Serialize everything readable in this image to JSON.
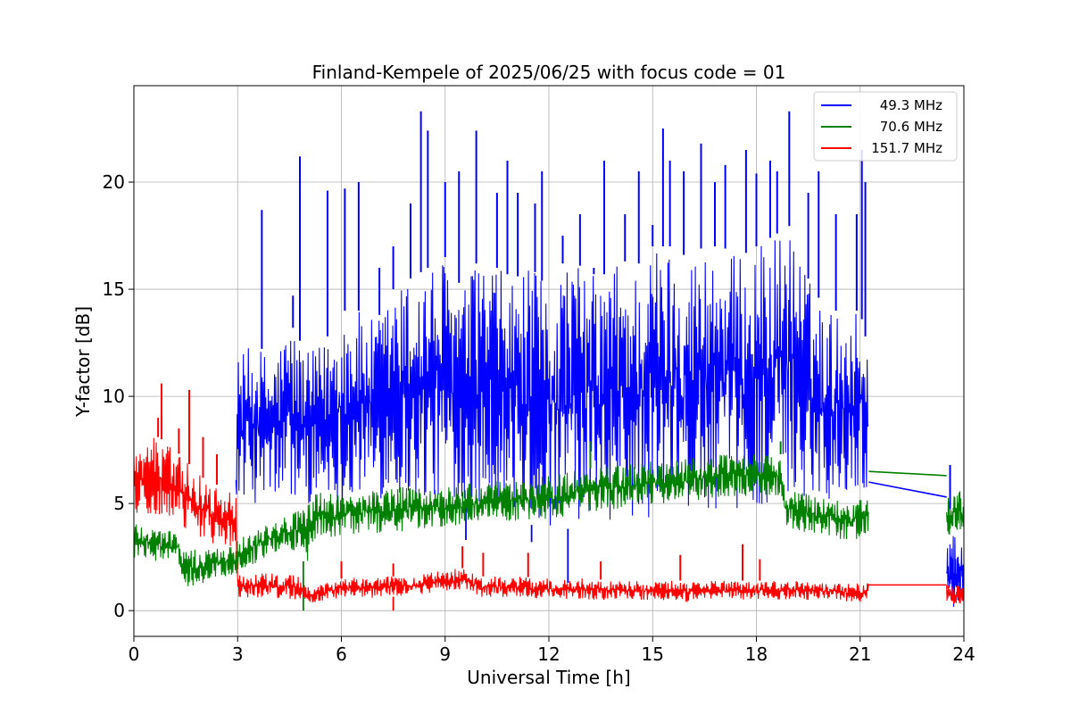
{
  "chart_data": {
    "type": "line",
    "title": "Finland-Kempele of 2025/06/25 with focus code = 01",
    "xlabel": "Universal Time [h]",
    "ylabel": "Y-factor [dB]",
    "xlim": [
      0,
      24
    ],
    "ylim": [
      -1.2,
      24.5
    ],
    "xticks": [
      0,
      3,
      6,
      9,
      12,
      15,
      18,
      21,
      24
    ],
    "xtick_labels": [
      "0",
      "3",
      "6",
      "9",
      "12",
      "15",
      "18",
      "21",
      "24"
    ],
    "yticks": [
      0,
      5,
      10,
      15,
      20
    ],
    "ytick_labels": [
      "0",
      "5",
      "10",
      "15",
      "20"
    ],
    "grid": true,
    "legend_position": "top-right",
    "series": [
      {
        "name": "49.3 MHz",
        "color": "#0000ff",
        "envelope": [
          {
            "x": 2.95,
            "low": 5.5,
            "high": 6.8
          },
          {
            "x": 3.0,
            "low": 5.2,
            "high": 11.9
          },
          {
            "x": 3.5,
            "low": 5.0,
            "high": 12.5
          },
          {
            "x": 4.0,
            "low": 5.0,
            "high": 11.8
          },
          {
            "x": 4.5,
            "low": 5.0,
            "high": 13.5
          },
          {
            "x": 5.0,
            "low": 5.0,
            "high": 12.0
          },
          {
            "x": 5.5,
            "low": 5.0,
            "high": 12.5
          },
          {
            "x": 6.0,
            "low": 5.1,
            "high": 14.0
          },
          {
            "x": 6.5,
            "low": 5.2,
            "high": 14.0
          },
          {
            "x": 7.0,
            "low": 5.2,
            "high": 13.5
          },
          {
            "x": 7.5,
            "low": 5.2,
            "high": 15.0
          },
          {
            "x": 8.0,
            "low": 5.0,
            "high": 15.5
          },
          {
            "x": 8.5,
            "low": 5.0,
            "high": 16.0
          },
          {
            "x": 9.0,
            "low": 5.2,
            "high": 16.5
          },
          {
            "x": 9.5,
            "low": 5.0,
            "high": 15.0
          },
          {
            "x": 10.0,
            "low": 5.0,
            "high": 16.5
          },
          {
            "x": 10.5,
            "low": 4.8,
            "high": 16.0
          },
          {
            "x": 11.0,
            "low": 4.5,
            "high": 15.5
          },
          {
            "x": 11.5,
            "low": 4.0,
            "high": 16.0
          },
          {
            "x": 12.0,
            "low": 3.8,
            "high": 15.0
          },
          {
            "x": 12.5,
            "low": 3.8,
            "high": 16.5
          },
          {
            "x": 13.0,
            "low": 4.0,
            "high": 16.0
          },
          {
            "x": 13.5,
            "low": 4.2,
            "high": 15.5
          },
          {
            "x": 14.0,
            "low": 4.0,
            "high": 16.5
          },
          {
            "x": 14.5,
            "low": 4.0,
            "high": 16.0
          },
          {
            "x": 15.0,
            "low": 4.3,
            "high": 17.0
          },
          {
            "x": 15.5,
            "low": 4.5,
            "high": 17.0
          },
          {
            "x": 16.0,
            "low": 4.5,
            "high": 16.5
          },
          {
            "x": 16.5,
            "low": 4.6,
            "high": 17.0
          },
          {
            "x": 17.0,
            "low": 4.8,
            "high": 17.0
          },
          {
            "x": 17.5,
            "low": 4.6,
            "high": 16.5
          },
          {
            "x": 18.0,
            "low": 4.8,
            "high": 17.0
          },
          {
            "x": 18.5,
            "low": 5.0,
            "high": 17.5
          },
          {
            "x": 19.0,
            "low": 5.2,
            "high": 18.0
          },
          {
            "x": 19.5,
            "low": 5.3,
            "high": 15.5
          },
          {
            "x": 20.0,
            "low": 5.2,
            "high": 14.0
          },
          {
            "x": 20.5,
            "low": 5.3,
            "high": 14.0
          },
          {
            "x": 21.0,
            "low": 5.5,
            "high": 14.0
          },
          {
            "x": 21.25,
            "low": 5.8,
            "high": 12.0
          }
        ],
        "bridge": [
          {
            "x": 21.25,
            "y": 6.0
          },
          {
            "x": 23.5,
            "y": 5.3
          }
        ],
        "tail": {
          "x_start": 23.5,
          "x_end": 24.0,
          "low": 0.1,
          "high": 3.5
        },
        "spikes": [
          {
            "x": 3.7,
            "y": 18.7
          },
          {
            "x": 4.6,
            "y": 14.7
          },
          {
            "x": 4.8,
            "y": 21.2
          },
          {
            "x": 5.6,
            "y": 19.6
          },
          {
            "x": 6.1,
            "y": 19.7
          },
          {
            "x": 6.5,
            "y": 20.0
          },
          {
            "x": 7.1,
            "y": 16.0
          },
          {
            "x": 7.5,
            "y": 17.0
          },
          {
            "x": 8.0,
            "y": 19.0
          },
          {
            "x": 8.3,
            "y": 23.3
          },
          {
            "x": 8.5,
            "y": 22.4
          },
          {
            "x": 9.0,
            "y": 20.0
          },
          {
            "x": 9.4,
            "y": 20.5
          },
          {
            "x": 9.9,
            "y": 22.4
          },
          {
            "x": 10.5,
            "y": 19.5
          },
          {
            "x": 10.8,
            "y": 21.0
          },
          {
            "x": 11.1,
            "y": 19.5
          },
          {
            "x": 11.6,
            "y": 19.0
          },
          {
            "x": 11.8,
            "y": 20.5
          },
          {
            "x": 12.4,
            "y": 17.5
          },
          {
            "x": 12.9,
            "y": 18.5
          },
          {
            "x": 13.3,
            "y": 16.0
          },
          {
            "x": 13.6,
            "y": 21.0
          },
          {
            "x": 14.2,
            "y": 18.5
          },
          {
            "x": 14.6,
            "y": 20.5
          },
          {
            "x": 15.0,
            "y": 18.0
          },
          {
            "x": 15.3,
            "y": 22.5
          },
          {
            "x": 15.5,
            "y": 21.0
          },
          {
            "x": 15.9,
            "y": 20.5
          },
          {
            "x": 16.4,
            "y": 21.8
          },
          {
            "x": 16.8,
            "y": 20.0
          },
          {
            "x": 17.1,
            "y": 20.8
          },
          {
            "x": 17.7,
            "y": 21.5
          },
          {
            "x": 18.0,
            "y": 20.4
          },
          {
            "x": 18.4,
            "y": 21.0
          },
          {
            "x": 18.6,
            "y": 20.5
          },
          {
            "x": 18.95,
            "y": 23.3
          },
          {
            "x": 19.5,
            "y": 19.5
          },
          {
            "x": 19.8,
            "y": 20.5
          },
          {
            "x": 20.3,
            "y": 18.5
          },
          {
            "x": 20.9,
            "y": 18.5
          },
          {
            "x": 21.05,
            "y": 21.5
          },
          {
            "x": 21.15,
            "y": 20.0
          },
          {
            "x": 23.6,
            "y": 6.8
          }
        ],
        "dips": [
          {
            "x": 9.6,
            "y": 3.3
          },
          {
            "x": 12.55,
            "y": 1.3
          },
          {
            "x": 11.5,
            "y": 3.2
          }
        ]
      },
      {
        "name": "70.6 MHz",
        "color": "#008000",
        "envelope": [
          {
            "x": 0.0,
            "low": 2.3,
            "high": 4.3
          },
          {
            "x": 0.5,
            "low": 2.3,
            "high": 4.0
          },
          {
            "x": 1.0,
            "low": 2.2,
            "high": 3.8
          },
          {
            "x": 1.3,
            "low": 2.2,
            "high": 3.8
          },
          {
            "x": 1.4,
            "low": 1.0,
            "high": 2.8
          },
          {
            "x": 2.0,
            "low": 1.2,
            "high": 2.9
          },
          {
            "x": 2.5,
            "low": 1.6,
            "high": 3.0
          },
          {
            "x": 2.95,
            "low": 1.6,
            "high": 3.0
          },
          {
            "x": 3.0,
            "low": 1.9,
            "high": 3.4
          },
          {
            "x": 3.5,
            "low": 2.2,
            "high": 3.8
          },
          {
            "x": 4.0,
            "low": 2.6,
            "high": 4.3
          },
          {
            "x": 4.5,
            "low": 2.8,
            "high": 4.5
          },
          {
            "x": 4.8,
            "low": 2.8,
            "high": 4.8
          },
          {
            "x": 5.0,
            "low": 1.8,
            "high": 5.0
          },
          {
            "x": 5.2,
            "low": 3.3,
            "high": 5.5
          },
          {
            "x": 6.0,
            "low": 3.5,
            "high": 5.5
          },
          {
            "x": 7.0,
            "low": 3.6,
            "high": 5.7
          },
          {
            "x": 8.0,
            "low": 3.7,
            "high": 5.8
          },
          {
            "x": 9.0,
            "low": 3.8,
            "high": 5.8
          },
          {
            "x": 10.0,
            "low": 4.0,
            "high": 6.0
          },
          {
            "x": 11.0,
            "low": 4.1,
            "high": 6.1
          },
          {
            "x": 12.0,
            "low": 4.2,
            "high": 6.3
          },
          {
            "x": 13.0,
            "low": 4.6,
            "high": 6.6
          },
          {
            "x": 14.0,
            "low": 4.7,
            "high": 6.8
          },
          {
            "x": 15.0,
            "low": 4.9,
            "high": 7.0
          },
          {
            "x": 16.0,
            "low": 5.1,
            "high": 7.1
          },
          {
            "x": 17.0,
            "low": 5.3,
            "high": 7.3
          },
          {
            "x": 18.0,
            "low": 5.3,
            "high": 7.3
          },
          {
            "x": 18.7,
            "low": 5.3,
            "high": 7.3
          },
          {
            "x": 18.8,
            "low": 3.8,
            "high": 5.8
          },
          {
            "x": 19.5,
            "low": 3.6,
            "high": 5.5
          },
          {
            "x": 20.0,
            "low": 3.5,
            "high": 5.3
          },
          {
            "x": 20.5,
            "low": 3.3,
            "high": 5.2
          },
          {
            "x": 21.0,
            "low": 3.2,
            "high": 5.3
          },
          {
            "x": 21.25,
            "low": 3.5,
            "high": 5.5
          }
        ],
        "bridge": [
          {
            "x": 21.25,
            "y": 6.5
          },
          {
            "x": 23.5,
            "y": 6.3
          }
        ],
        "tail": {
          "x_start": 23.5,
          "x_end": 24.0,
          "low": 3.5,
          "high": 5.6
        },
        "spikes": [
          {
            "x": 13.2,
            "y": 7.9
          },
          {
            "x": 18.7,
            "y": 7.9
          }
        ],
        "dips": [
          {
            "x": 4.9,
            "y": 0.0
          }
        ]
      },
      {
        "name": "151.7 MHz",
        "color": "#ff0000",
        "envelope": [
          {
            "x": 0.0,
            "low": 4.3,
            "high": 7.5
          },
          {
            "x": 0.5,
            "low": 4.5,
            "high": 8.3
          },
          {
            "x": 1.0,
            "low": 4.0,
            "high": 7.8
          },
          {
            "x": 1.5,
            "low": 3.7,
            "high": 7.0
          },
          {
            "x": 2.0,
            "low": 3.3,
            "high": 6.2
          },
          {
            "x": 2.5,
            "low": 3.0,
            "high": 5.8
          },
          {
            "x": 2.95,
            "low": 3.0,
            "high": 5.5
          },
          {
            "x": 3.0,
            "low": 0.6,
            "high": 1.7
          },
          {
            "x": 4.0,
            "low": 0.6,
            "high": 1.8
          },
          {
            "x": 4.8,
            "low": 0.5,
            "high": 1.6
          },
          {
            "x": 5.0,
            "low": 0.3,
            "high": 1.1
          },
          {
            "x": 6.0,
            "low": 0.6,
            "high": 1.5
          },
          {
            "x": 7.0,
            "low": 0.6,
            "high": 1.6
          },
          {
            "x": 8.0,
            "low": 0.7,
            "high": 1.6
          },
          {
            "x": 9.0,
            "low": 0.9,
            "high": 1.9
          },
          {
            "x": 9.6,
            "low": 1.0,
            "high": 2.0
          },
          {
            "x": 10.0,
            "low": 0.6,
            "high": 1.6
          },
          {
            "x": 11.0,
            "low": 0.6,
            "high": 1.6
          },
          {
            "x": 12.0,
            "low": 0.5,
            "high": 1.5
          },
          {
            "x": 13.0,
            "low": 0.5,
            "high": 1.5
          },
          {
            "x": 14.0,
            "low": 0.5,
            "high": 1.4
          },
          {
            "x": 15.0,
            "low": 0.5,
            "high": 1.4
          },
          {
            "x": 16.0,
            "low": 0.4,
            "high": 1.4
          },
          {
            "x": 17.0,
            "low": 0.4,
            "high": 1.4
          },
          {
            "x": 18.0,
            "low": 0.5,
            "high": 1.4
          },
          {
            "x": 19.0,
            "low": 0.5,
            "high": 1.4
          },
          {
            "x": 20.0,
            "low": 0.5,
            "high": 1.3
          },
          {
            "x": 21.0,
            "low": 0.4,
            "high": 1.3
          },
          {
            "x": 21.25,
            "low": 0.5,
            "high": 1.3
          }
        ],
        "bridge": [
          {
            "x": 21.25,
            "y": 1.2
          },
          {
            "x": 23.5,
            "y": 1.2
          }
        ],
        "tail": {
          "x_start": 23.5,
          "x_end": 24.0,
          "low": 0.3,
          "high": 1.2
        },
        "spikes": [
          {
            "x": 0.8,
            "y": 10.6
          },
          {
            "x": 0.7,
            "y": 9.0
          },
          {
            "x": 1.6,
            "y": 10.3
          },
          {
            "x": 1.3,
            "y": 8.5
          },
          {
            "x": 2.0,
            "y": 8.1
          },
          {
            "x": 2.4,
            "y": 7.3
          },
          {
            "x": 9.5,
            "y": 3.0
          },
          {
            "x": 10.1,
            "y": 2.7
          },
          {
            "x": 11.4,
            "y": 2.7
          },
          {
            "x": 13.5,
            "y": 2.3
          },
          {
            "x": 15.8,
            "y": 2.6
          },
          {
            "x": 17.6,
            "y": 3.1
          },
          {
            "x": 18.1,
            "y": 2.4
          },
          {
            "x": 6.0,
            "y": 2.3
          },
          {
            "x": 7.5,
            "y": 2.2
          }
        ],
        "dips": [
          {
            "x": 7.5,
            "y": 0.0
          }
        ]
      }
    ]
  }
}
